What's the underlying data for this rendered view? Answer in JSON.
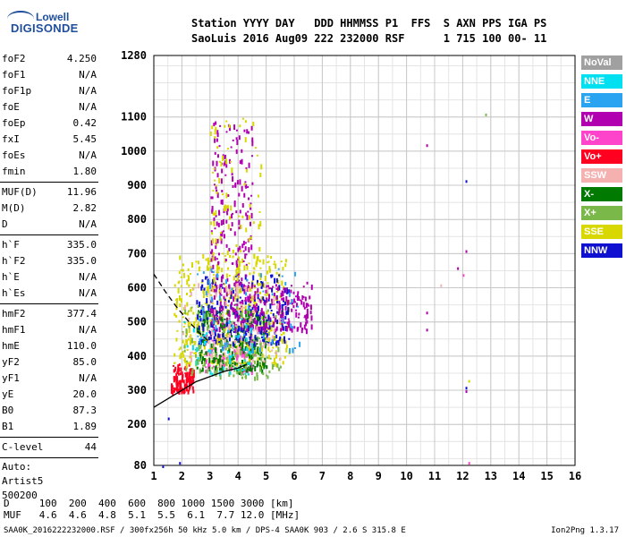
{
  "logo": {
    "line1": "Lowell",
    "line2": "DIGISONDE"
  },
  "header": {
    "row1": "Station YYYY DAY   DDD HHMMSS P1  FFS  S AXN PPS IGA PS",
    "row2": "SaoLuis 2016 Aug09 222 232000 RSF      1 715 100 00- 11"
  },
  "params": {
    "group1": [
      {
        "name": "foF2",
        "value": "4.250"
      },
      {
        "name": "foF1",
        "value": "N/A"
      },
      {
        "name": "foF1p",
        "value": "N/A"
      },
      {
        "name": "foE",
        "value": "N/A"
      },
      {
        "name": "foEp",
        "value": "0.42"
      },
      {
        "name": "fxI",
        "value": "5.45"
      },
      {
        "name": "foEs",
        "value": "N/A"
      },
      {
        "name": "fmin",
        "value": "1.80"
      }
    ],
    "group2": [
      {
        "name": "MUF(D)",
        "value": "11.96"
      },
      {
        "name": "M(D)",
        "value": "2.82"
      },
      {
        "name": "D",
        "value": "N/A"
      }
    ],
    "group3": [
      {
        "name": "h`F",
        "value": "335.0"
      },
      {
        "name": "h`F2",
        "value": "335.0"
      },
      {
        "name": "h`E",
        "value": "N/A"
      },
      {
        "name": "h`Es",
        "value": "N/A"
      }
    ],
    "group4": [
      {
        "name": "hmF2",
        "value": "377.4"
      },
      {
        "name": "hmF1",
        "value": "N/A"
      },
      {
        "name": "hmE",
        "value": "110.0"
      },
      {
        "name": "yF2",
        "value": "85.0"
      },
      {
        "name": "yF1",
        "value": "N/A"
      },
      {
        "name": "yE",
        "value": "20.0"
      },
      {
        "name": "B0",
        "value": "87.3"
      },
      {
        "name": "B1",
        "value": "1.89"
      }
    ],
    "clevel": {
      "name": "C-level",
      "value": "44"
    },
    "auto": [
      "Auto:",
      "Artist5",
      "500200"
    ]
  },
  "legend": [
    {
      "label": "NoVal",
      "color": "#a0a0a0"
    },
    {
      "label": "NNE",
      "color": "#00e0f0"
    },
    {
      "label": "E",
      "color": "#2aa4f0"
    },
    {
      "label": "W",
      "color": "#b000b0"
    },
    {
      "label": "Vo-",
      "color": "#ff44cc"
    },
    {
      "label": "Vo+",
      "color": "#ff0020"
    },
    {
      "label": "SSW",
      "color": "#f5b0b0"
    },
    {
      "label": "X-",
      "color": "#007a00"
    },
    {
      "label": "X+",
      "color": "#7ab84a"
    },
    {
      "label": "SSE",
      "color": "#d8d800"
    },
    {
      "label": "NNW",
      "color": "#1010d0"
    }
  ],
  "bottom": {
    "row1": "D     100  200  400  600  800 1000 1500 3000 [km]",
    "row2": "MUF   4.6  4.6  4.8  5.1  5.5  6.1  7.7 12.0 [MHz]"
  },
  "footer": {
    "left": "SAA0K_2016222232000.RSF / 300fx256h 50 kHz 5.0 km / DPS-4 SAA0K 903 / 2.6 S 315.8 E",
    "right": "Ion2Png 1.3.17"
  },
  "chart_data": {
    "type": "scatter",
    "xlim": [
      1,
      16
    ],
    "ylim": [
      80,
      1280
    ],
    "x_ticks": [
      1,
      2,
      3,
      4,
      5,
      6,
      7,
      8,
      9,
      10,
      11,
      12,
      13,
      14,
      15,
      16
    ],
    "y_ticks": [
      80,
      200,
      300,
      400,
      500,
      600,
      700,
      800,
      900,
      1000,
      1100,
      1280
    ],
    "grid": true,
    "traces": [
      {
        "name": "dashed",
        "style": "dashed",
        "x": [
          1.0,
          1.4,
          1.8,
          2.2,
          2.6,
          3.0
        ],
        "y": [
          640,
          590,
          545,
          505,
          470,
          440
        ]
      },
      {
        "name": "solid",
        "style": "solid",
        "x": [
          1.0,
          1.5,
          2.0,
          2.5,
          3.0,
          3.5,
          4.0,
          4.3
        ],
        "y": [
          250,
          275,
          300,
          325,
          340,
          355,
          365,
          375
        ]
      }
    ],
    "clusters": [
      {
        "color": "#ff0020",
        "x": [
          1.6,
          2.4
        ],
        "y": [
          300,
          380
        ],
        "n": 120
      },
      {
        "color": "#ff44cc",
        "x": [
          2.8,
          4.6
        ],
        "y": [
          360,
          470
        ],
        "n": 120
      },
      {
        "color": "#d8d800",
        "x": [
          1.7,
          5.8
        ],
        "y": [
          380,
          700
        ],
        "n": 420
      },
      {
        "color": "#007a00",
        "x": [
          2.5,
          5.0
        ],
        "y": [
          360,
          540
        ],
        "n": 260
      },
      {
        "color": "#7ab84a",
        "x": [
          2.0,
          5.5
        ],
        "y": [
          340,
          560
        ],
        "n": 160
      },
      {
        "color": "#1010d0",
        "x": [
          2.5,
          5.8
        ],
        "y": [
          440,
          640
        ],
        "n": 240
      },
      {
        "color": "#b000b0",
        "x": [
          3.0,
          6.6
        ],
        "y": [
          480,
          620
        ],
        "n": 260
      },
      {
        "color": "#b000b0",
        "x": [
          3.0,
          4.5
        ],
        "y": [
          600,
          1100
        ],
        "n": 180
      },
      {
        "color": "#d8d800",
        "x": [
          3.0,
          4.8
        ],
        "y": [
          600,
          1100
        ],
        "n": 100
      },
      {
        "color": "#f5b0b0",
        "x": [
          2.0,
          5.5
        ],
        "y": [
          380,
          620
        ],
        "n": 90
      },
      {
        "color": "#2aa4f0",
        "x": [
          2.5,
          6.2
        ],
        "y": [
          420,
          660
        ],
        "n": 60
      },
      {
        "color": "#00e0f0",
        "x": [
          2.0,
          4.5
        ],
        "y": [
          350,
          520
        ],
        "n": 50
      }
    ],
    "outliers": [
      {
        "color": "#b000b0",
        "x": 10.7,
        "y": 1020
      },
      {
        "color": "#1010d0",
        "x": 12.1,
        "y": 915
      },
      {
        "color": "#7ab84a",
        "x": 12.8,
        "y": 1110
      },
      {
        "color": "#b000b0",
        "x": 12.1,
        "y": 710
      },
      {
        "color": "#ff44cc",
        "x": 12.0,
        "y": 640
      },
      {
        "color": "#b000b0",
        "x": 11.8,
        "y": 660
      },
      {
        "color": "#b000b0",
        "x": 10.7,
        "y": 530
      },
      {
        "color": "#b000b0",
        "x": 10.7,
        "y": 480
      },
      {
        "color": "#f5b0b0",
        "x": 11.2,
        "y": 610
      },
      {
        "color": "#1010d0",
        "x": 12.1,
        "y": 310
      },
      {
        "color": "#b000b0",
        "x": 12.1,
        "y": 300
      },
      {
        "color": "#ff44cc",
        "x": 12.2,
        "y": 90
      },
      {
        "color": "#d8d800",
        "x": 12.2,
        "y": 330
      },
      {
        "color": "#1010d0",
        "x": 1.5,
        "y": 220
      },
      {
        "color": "#1010d0",
        "x": 1.3,
        "y": 80
      },
      {
        "color": "#1010d0",
        "x": 1.9,
        "y": 90
      }
    ]
  }
}
